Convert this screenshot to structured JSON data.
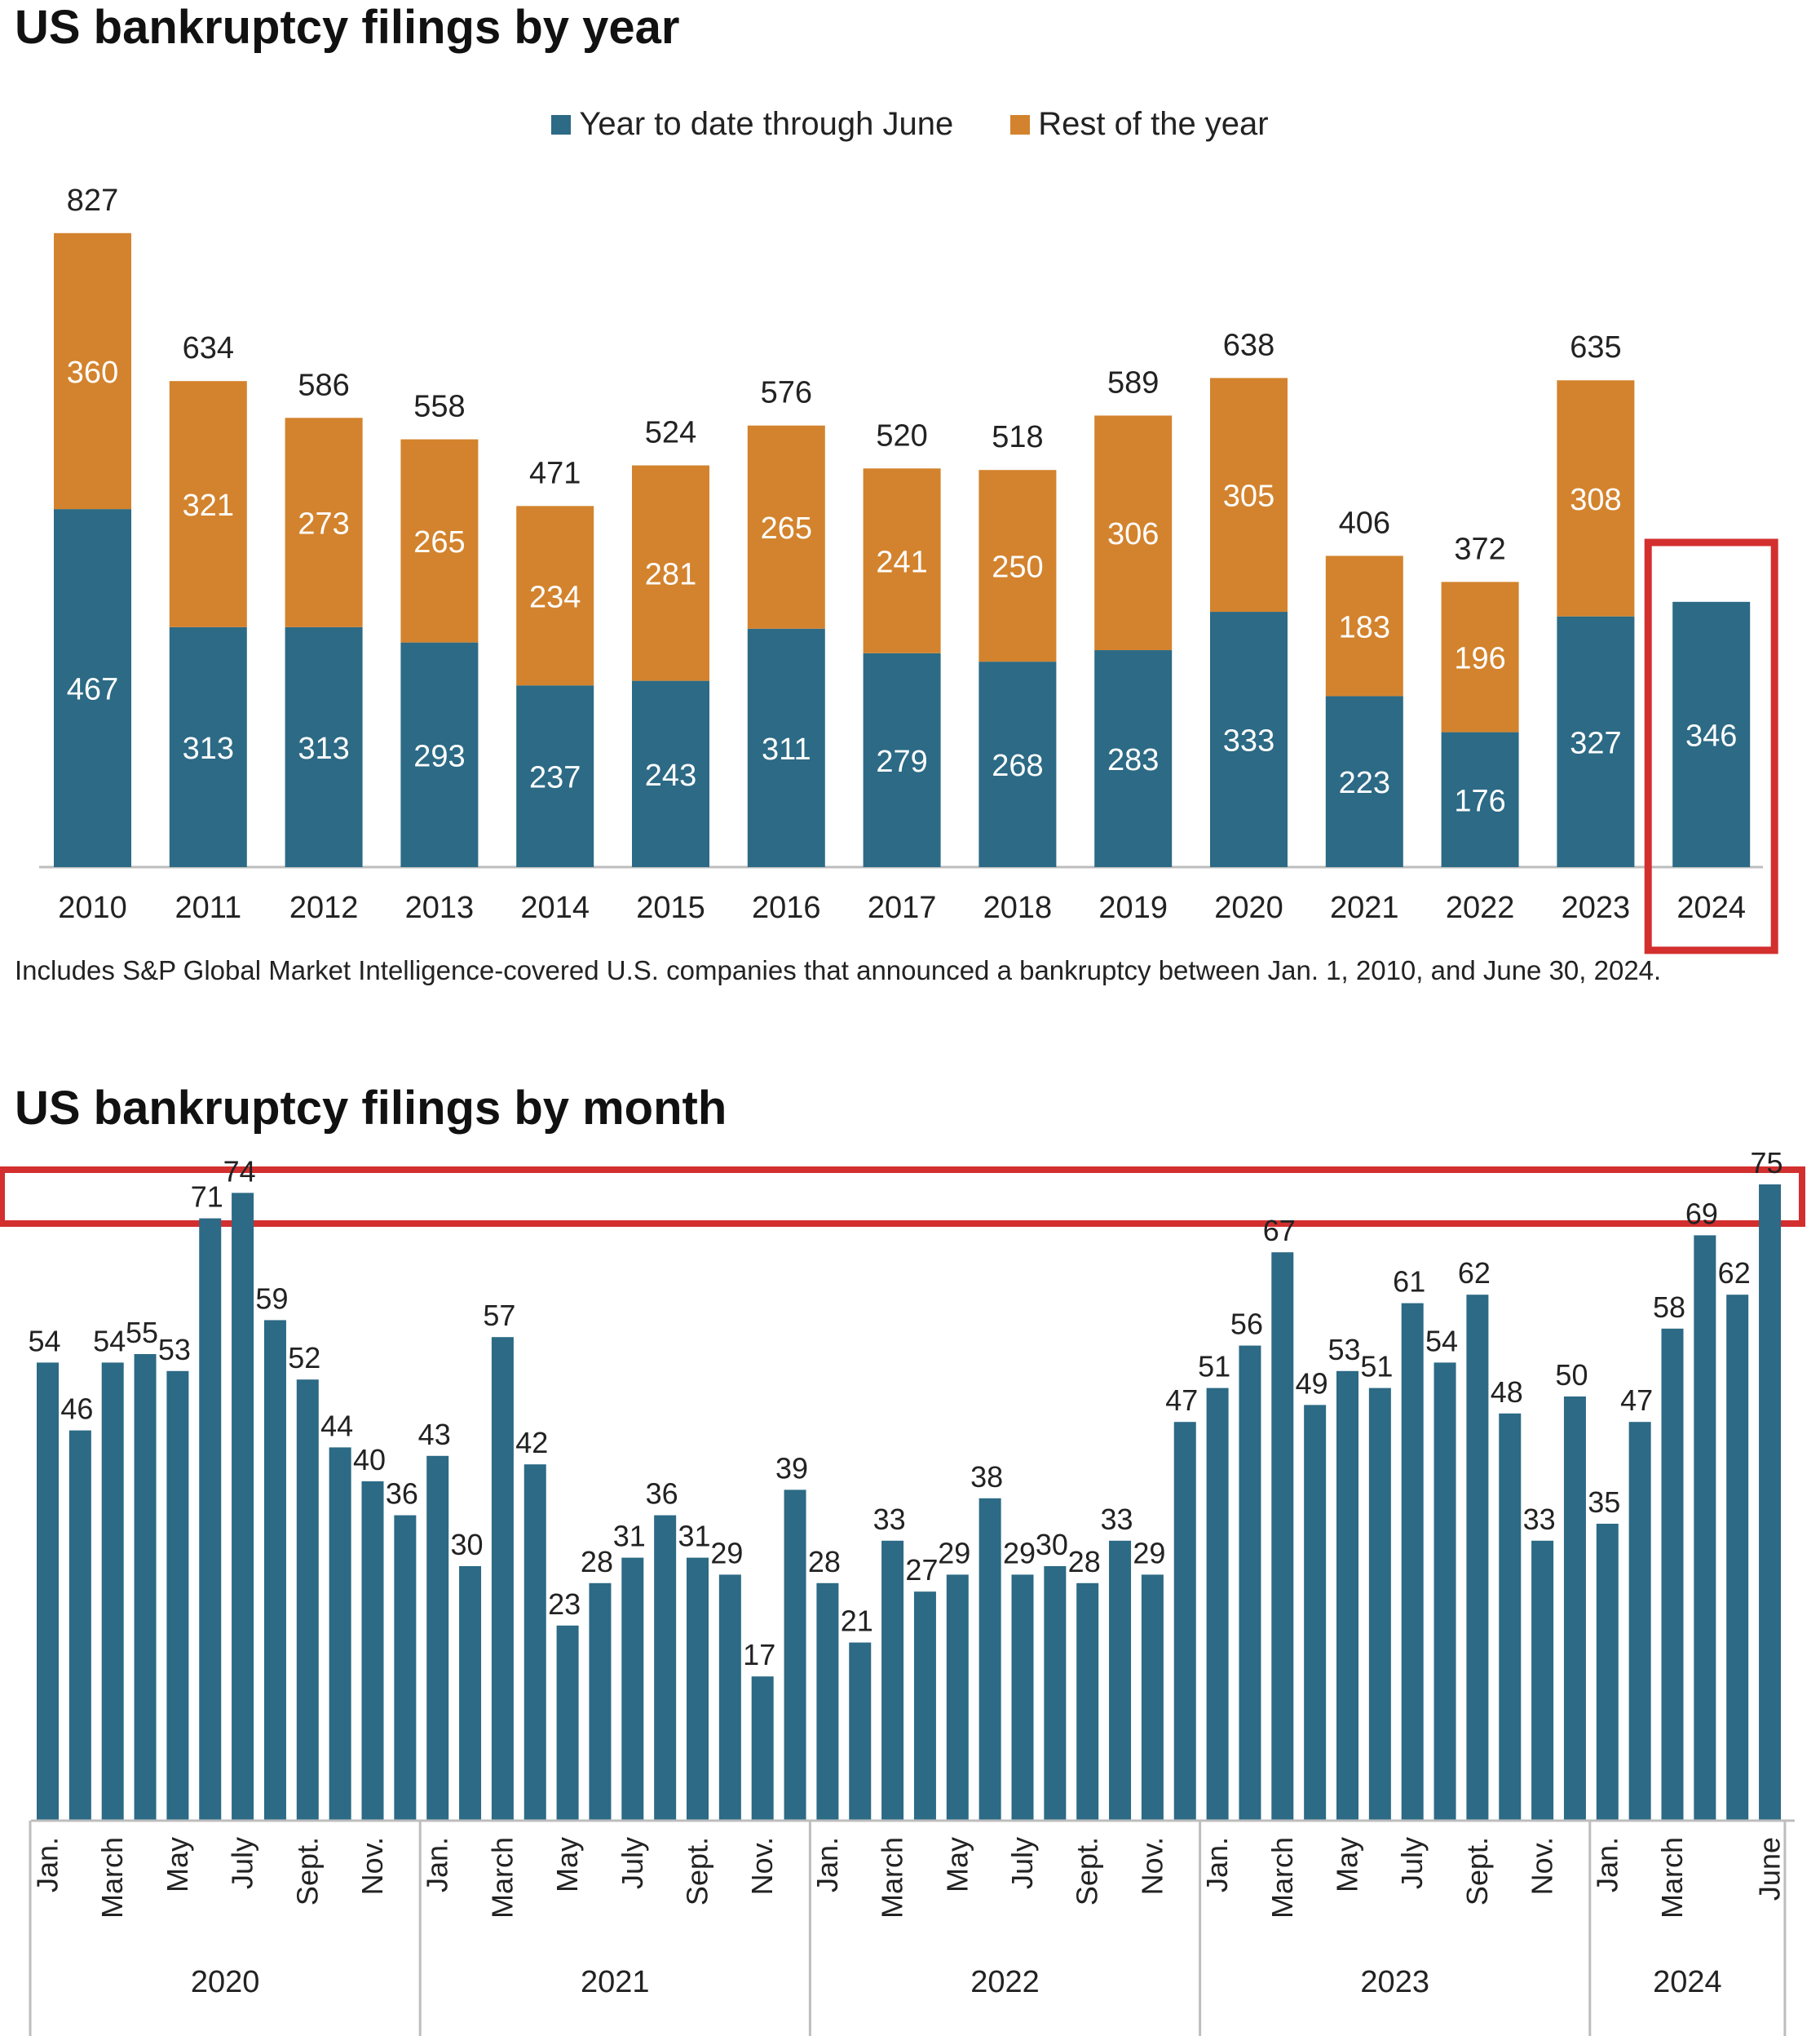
{
  "title_year": "US bankruptcy filings by year",
  "title_month": "US bankruptcy filings by month",
  "legend": {
    "ytd_label": "Year to date through June",
    "rest_label": "Rest of the year"
  },
  "colors": {
    "ytd": "#2c6a85",
    "rest": "#d3832d",
    "highlight": "#d32f2f",
    "axis": "#bdbdbd"
  },
  "note": "Includes S&P Global Market Intelligence-covered U.S. companies that announced a bankruptcy between Jan. 1, 2010, and June 30, 2024.",
  "chart_data": [
    {
      "type": "bar",
      "stacked": true,
      "title": "US bankruptcy filings by year",
      "categories": [
        "2010",
        "2011",
        "2012",
        "2013",
        "2014",
        "2015",
        "2016",
        "2017",
        "2018",
        "2019",
        "2020",
        "2021",
        "2022",
        "2023",
        "2024"
      ],
      "series": [
        {
          "name": "Year to date through June",
          "values": [
            467,
            313,
            313,
            293,
            237,
            243,
            311,
            279,
            268,
            283,
            333,
            223,
            176,
            327,
            346
          ]
        },
        {
          "name": "Rest of the year",
          "values": [
            360,
            321,
            273,
            265,
            234,
            281,
            265,
            241,
            250,
            306,
            305,
            183,
            196,
            308,
            null
          ]
        }
      ],
      "totals": [
        827,
        634,
        586,
        558,
        471,
        524,
        576,
        520,
        518,
        589,
        638,
        406,
        372,
        635,
        null
      ],
      "ylim": [
        0,
        900
      ],
      "legend_position": "top-center",
      "highlight": "2024"
    },
    {
      "type": "bar",
      "title": "US bankruptcy filings by month",
      "values": [
        54,
        46,
        54,
        55,
        53,
        71,
        74,
        59,
        52,
        44,
        40,
        36,
        43,
        30,
        57,
        42,
        23,
        28,
        31,
        36,
        31,
        29,
        17,
        39,
        28,
        21,
        33,
        27,
        29,
        38,
        29,
        30,
        28,
        33,
        29,
        47,
        51,
        56,
        67,
        49,
        53,
        51,
        61,
        54,
        62,
        48,
        33,
        50,
        35,
        47,
        58,
        69,
        62,
        75
      ],
      "tick_labels": [
        {
          "index": 0,
          "label": "Jan."
        },
        {
          "index": 2,
          "label": "March"
        },
        {
          "index": 4,
          "label": "May"
        },
        {
          "index": 6,
          "label": "July"
        },
        {
          "index": 8,
          "label": "Sept."
        },
        {
          "index": 10,
          "label": "Nov."
        },
        {
          "index": 12,
          "label": "Jan."
        },
        {
          "index": 14,
          "label": "March"
        },
        {
          "index": 16,
          "label": "May"
        },
        {
          "index": 18,
          "label": "July"
        },
        {
          "index": 20,
          "label": "Sept."
        },
        {
          "index": 22,
          "label": "Nov."
        },
        {
          "index": 24,
          "label": "Jan."
        },
        {
          "index": 26,
          "label": "March"
        },
        {
          "index": 28,
          "label": "May"
        },
        {
          "index": 30,
          "label": "July"
        },
        {
          "index": 32,
          "label": "Sept."
        },
        {
          "index": 34,
          "label": "Nov."
        },
        {
          "index": 36,
          "label": "Jan."
        },
        {
          "index": 38,
          "label": "March"
        },
        {
          "index": 40,
          "label": "May"
        },
        {
          "index": 42,
          "label": "July"
        },
        {
          "index": 44,
          "label": "Sept."
        },
        {
          "index": 46,
          "label": "Nov."
        },
        {
          "index": 48,
          "label": "Jan."
        },
        {
          "index": 50,
          "label": "March"
        },
        {
          "index": 53,
          "label": "June"
        }
      ],
      "years": [
        {
          "label": "2020",
          "start": 0,
          "count": 12
        },
        {
          "label": "2021",
          "start": 12,
          "count": 12
        },
        {
          "label": "2022",
          "start": 24,
          "count": 12
        },
        {
          "label": "2023",
          "start": 36,
          "count": 12
        },
        {
          "label": "2024",
          "start": 48,
          "count": 6
        }
      ],
      "ylim": [
        0,
        80
      ],
      "highlight_value": 75
    }
  ]
}
